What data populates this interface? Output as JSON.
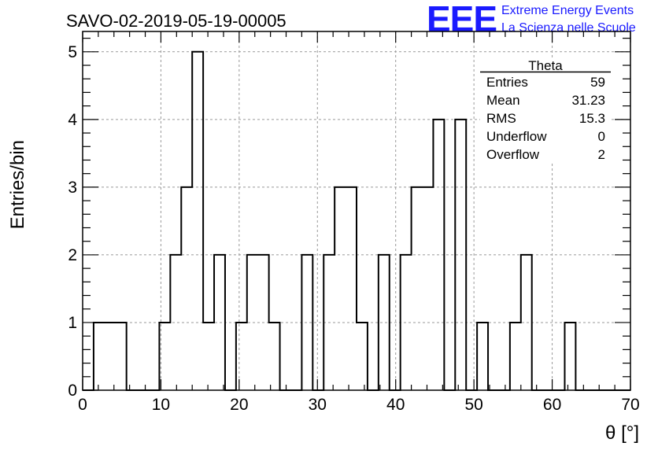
{
  "chart_data": {
    "type": "bar",
    "title": "SAVO-02-2019-05-19-00005",
    "xlabel": "θ [°]",
    "ylabel": "Entries/bin",
    "xlim": [
      0,
      70
    ],
    "ylim": [
      0,
      5.3
    ],
    "xticks": [
      "0",
      "10",
      "20",
      "30",
      "40",
      "50",
      "60",
      "70"
    ],
    "yticks": [
      "0",
      "1",
      "2",
      "3",
      "4",
      "5"
    ],
    "grid": true,
    "bin_width": 1.4,
    "bin_start": 0,
    "values": [
      0,
      1,
      1,
      1,
      0,
      0,
      0,
      1,
      2,
      3,
      5,
      1,
      2,
      0,
      1,
      2,
      2,
      1,
      0,
      0,
      2,
      0,
      2,
      3,
      3,
      1,
      0,
      2,
      0,
      2,
      3,
      3,
      4,
      0,
      4,
      0,
      1,
      0,
      0,
      1,
      2,
      0,
      0,
      0,
      1,
      0,
      0,
      0,
      0,
      0
    ],
    "stats": {
      "title": "Theta",
      "rows": [
        {
          "label": "Entries",
          "value": "59"
        },
        {
          "label": "Mean",
          "value": "31.23"
        },
        {
          "label": "RMS",
          "value": "15.3"
        },
        {
          "label": "Underflow",
          "value": "0"
        },
        {
          "label": "Overflow",
          "value": "2"
        }
      ]
    }
  },
  "logo": {
    "mark": "EEE",
    "line1": "Extreme Energy Events",
    "line2": "La Scienza nelle Scuole",
    "color": "#1a1aff"
  }
}
